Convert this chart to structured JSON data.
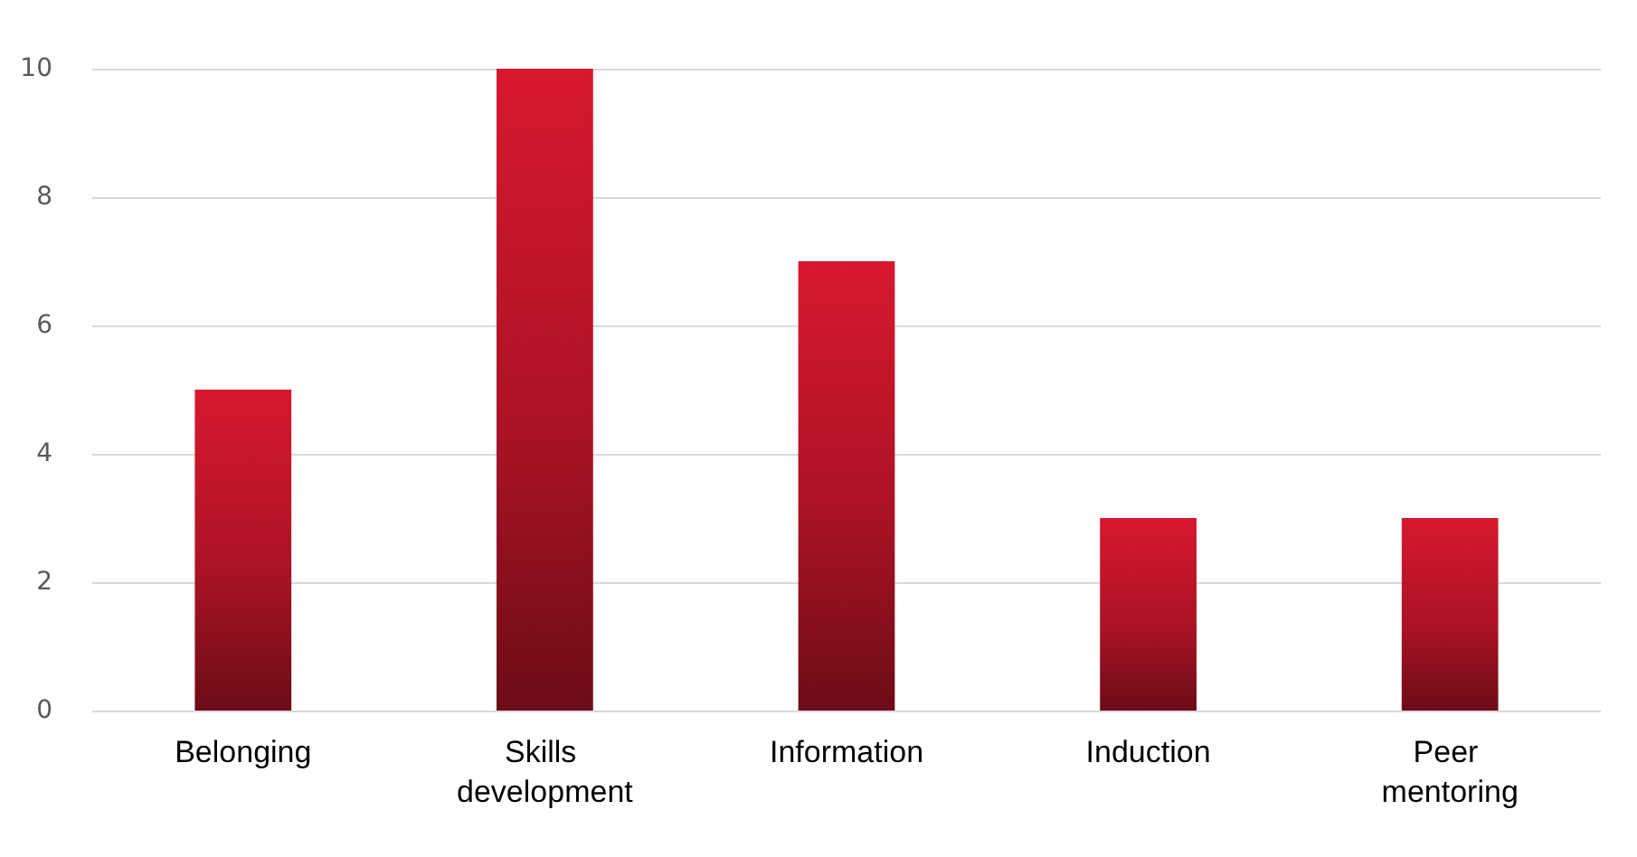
{
  "chart_data": {
    "type": "bar",
    "categories": [
      "Belonging",
      "Skills development",
      "Information",
      "Induction",
      "Peer mentoring"
    ],
    "values": [
      5,
      10,
      7,
      3,
      3
    ],
    "color": "#d7182e",
    "ylim": [
      0,
      10
    ],
    "yticks": [
      0,
      2,
      4,
      6,
      8,
      10
    ],
    "grid": "y"
  }
}
